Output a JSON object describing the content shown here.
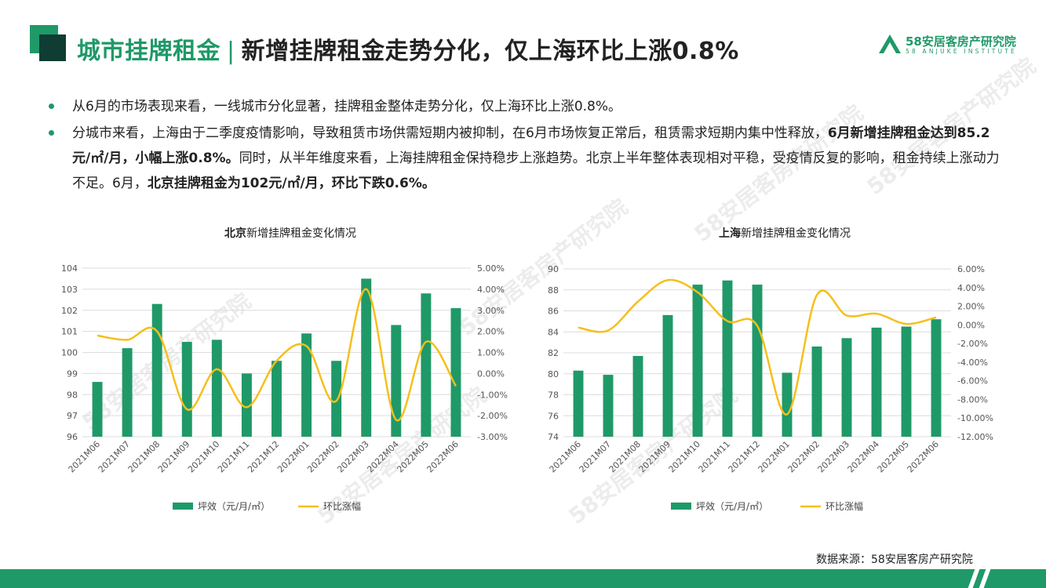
{
  "header": {
    "title_main": "城市挂牌租金",
    "title_sep": "|",
    "title_sub": "新增挂牌租金走势分化，仅上海环比上涨0.8%",
    "logo_cn": "58安居客房产研究院",
    "logo_en": "58 ANJUKE INSTITUTE"
  },
  "bullets": [
    {
      "text": "从6月的市场表现来看，一线城市分化显著，挂牌租金整体走势分化，仅上海环比上涨0.8%。"
    },
    {
      "p1": "分城市来看，上海由于二季度疫情影响，导致租赁市场供需短期内被抑制，在6月市场恢复正常后，租赁需求短期内集中性释放，",
      "b1": "6月新增挂牌租金达到85.2元/㎡/月，小幅上涨0.8%。",
      "p2": "同时，从半年维度来看，上海挂牌租金保持稳步上涨趋势。北京上半年整体表现相对平稳，受疫情反复的影响，租金持续上涨动力不足。6月，",
      "b2": "北京挂牌租金为102元/㎡/月，环比下跌0.6%。"
    }
  ],
  "colors": {
    "bar": "#1f9968",
    "line": "#f5bf1c",
    "accent": "#1f9968",
    "dark": "#0f3d33"
  },
  "chart_data": [
    {
      "type": "bar",
      "title_city": "北京",
      "title_rest": "新增挂牌租金变化情况",
      "categories": [
        "2021M06",
        "2021M07",
        "2021M08",
        "2021M09",
        "2021M10",
        "2021M11",
        "2021M12",
        "2022M01",
        "2022M02",
        "2022M03",
        "2022M04",
        "2022M05",
        "2022M06"
      ],
      "series": [
        {
          "name": "坪效（元/月/㎡）",
          "type": "bar",
          "axis": "left",
          "values": [
            98.6,
            100.2,
            102.3,
            100.5,
            100.6,
            99.0,
            99.6,
            100.9,
            99.6,
            103.5,
            101.3,
            102.8,
            102.1
          ]
        },
        {
          "name": "环比涨幅",
          "type": "line",
          "axis": "right",
          "values": [
            1.8,
            1.6,
            2.0,
            -1.7,
            0.2,
            -1.6,
            0.6,
            1.3,
            -1.3,
            4.0,
            -2.2,
            1.5,
            -0.6
          ]
        }
      ],
      "ylim_left": [
        96,
        104
      ],
      "yticks_left": [
        "96",
        "97",
        "98",
        "99",
        "100",
        "101",
        "102",
        "103",
        "104"
      ],
      "ylim_right": [
        -3,
        5
      ],
      "yticks_right": [
        "-3.00%",
        "-2.00%",
        "-1.00%",
        "0.00%",
        "1.00%",
        "2.00%",
        "3.00%",
        "4.00%",
        "5.00%"
      ],
      "legend_position": "bottom"
    },
    {
      "type": "bar",
      "title_city": "上海",
      "title_rest": "新增挂牌租金变化情况",
      "categories": [
        "2021M06",
        "2021M07",
        "2021M08",
        "2021M09",
        "2021M10",
        "2021M11",
        "2021M12",
        "2022M01",
        "2022M02",
        "2022M03",
        "2022M04",
        "2022M05",
        "2022M06"
      ],
      "series": [
        {
          "name": "坪效（元/月/㎡）",
          "type": "bar",
          "axis": "left",
          "values": [
            80.3,
            79.9,
            81.7,
            85.6,
            88.5,
            88.9,
            88.5,
            80.1,
            82.6,
            83.4,
            84.4,
            84.5,
            85.2
          ]
        },
        {
          "name": "环比涨幅",
          "type": "line",
          "axis": "right",
          "values": [
            -0.3,
            -0.6,
            2.5,
            4.8,
            3.5,
            0.4,
            -0.1,
            -9.6,
            3.2,
            1.0,
            1.2,
            0.1,
            0.8
          ]
        }
      ],
      "ylim_left": [
        74,
        90
      ],
      "yticks_left": [
        "74",
        "76",
        "78",
        "80",
        "82",
        "84",
        "86",
        "88",
        "90"
      ],
      "ylim_right": [
        -12,
        6
      ],
      "yticks_right": [
        "-12.00%",
        "-10.00%",
        "-8.00%",
        "-6.00%",
        "-4.00%",
        "-2.00%",
        "0.00%",
        "2.00%",
        "4.00%",
        "6.00%"
      ],
      "legend_position": "bottom"
    }
  ],
  "source": "数据来源：58安居客房产研究院",
  "watermark": "58安居客房产研究院"
}
